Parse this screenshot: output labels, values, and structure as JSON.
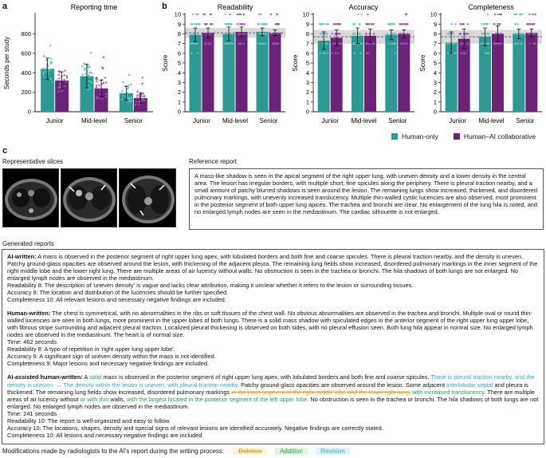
{
  "panels": {
    "a": "a",
    "b": "b",
    "c": "c"
  },
  "colors": {
    "human": "#2a9a92",
    "ai": "#6a2377",
    "band": "#d9d9d9"
  },
  "legend": {
    "human": "Human-only",
    "ai": "Human–AI collaborative"
  },
  "chart_data": [
    {
      "type": "bar",
      "title": "Reporting time",
      "ylabel": "Seconds per study",
      "ylim": [
        0,
        1000
      ],
      "yticks": [
        0,
        200,
        400,
        600,
        800
      ],
      "categories": [
        "Junior",
        "Mid-level",
        "Senior"
      ],
      "series": [
        {
          "name": "Human-only",
          "values": [
            440,
            365,
            190
          ],
          "err": [
            110,
            120,
            70
          ]
        },
        {
          "name": "Human–AI collaborative",
          "values": [
            320,
            240,
            140
          ],
          "err": [
            90,
            85,
            55
          ]
        }
      ]
    },
    {
      "type": "bar",
      "title": "Readability",
      "ylabel": "Score",
      "ylim": [
        0,
        10
      ],
      "yticks": [
        0,
        1,
        2,
        3,
        4,
        5,
        6,
        7,
        8,
        9,
        10
      ],
      "categories": [
        "Junior",
        "Mid-level",
        "Senior"
      ],
      "band": [
        7.6,
        8.6
      ],
      "ref": 8.1,
      "series": [
        {
          "name": "Human-only",
          "values": [
            7.9,
            8.0,
            8.2
          ],
          "err": [
            0.7,
            0.7,
            0.4
          ]
        },
        {
          "name": "Human–AI collaborative",
          "values": [
            8.1,
            8.2,
            8.1
          ],
          "err": [
            0.5,
            0.5,
            0.3
          ]
        }
      ]
    },
    {
      "type": "bar",
      "title": "Accuracy",
      "ylabel": "Score",
      "ylim": [
        0,
        10
      ],
      "yticks": [
        0,
        1,
        2,
        3,
        4,
        5,
        6,
        7,
        8,
        9,
        10
      ],
      "categories": [
        "Junior",
        "Mid-level",
        "Senior"
      ],
      "band": [
        7.0,
        8.4
      ],
      "ref": 7.7,
      "series": [
        {
          "name": "Human-only",
          "values": [
            7.3,
            7.8,
            7.9
          ],
          "err": [
            0.9,
            0.8,
            0.5
          ]
        },
        {
          "name": "Human–AI collaborative",
          "values": [
            7.6,
            7.8,
            8.0
          ],
          "err": [
            0.8,
            0.7,
            0.4
          ]
        }
      ]
    },
    {
      "type": "bar",
      "title": "Completeness",
      "ylabel": "Score",
      "ylim": [
        0,
        10
      ],
      "yticks": [
        0,
        1,
        2,
        3,
        4,
        5,
        6,
        7,
        8,
        9,
        10
      ],
      "categories": [
        "Junior",
        "Mid-level",
        "Senior"
      ],
      "band": [
        7.0,
        8.4
      ],
      "ref": 7.7,
      "series": [
        {
          "name": "Human-only",
          "values": [
            7.1,
            7.7,
            8.0
          ],
          "err": [
            1.1,
            0.9,
            0.5
          ]
        },
        {
          "name": "Human–AI collaborative",
          "values": [
            7.5,
            8.0,
            8.1
          ],
          "err": [
            1.0,
            0.8,
            0.4
          ]
        }
      ]
    }
  ],
  "section_c": {
    "slices_title": "Representative slices",
    "reference_title": "Reference report",
    "reference_text": "A mass-like shadow is seen in the apical segment of the right upper lung, with uneven density and a lower density in the central area. The lesion has irregular borders, with multiple short, fine spicules along the periphery. There is pleural traction nearby, and a small amount of patchy blurred shadows is seen around the lesion. The remaining lungs show increased, thickened, and disordered pulmonary markings, with unevenly increased translucency. Multiple thin-walled cystic lucencies are also observed, most prominent in the posterior segment of both upper lung apices. The trachea and bronchi are clear. No enlargement of the lung hila is noted, and no enlarged lymph nodes are seen in the mediastinum. The cardiac silhouette is not enlarged.",
    "generated_title": "Generated reports",
    "ai": {
      "label": "AI-written:",
      "text": " A mass is observed in the posterior segment of right upper lung apex, with lobulated borders and both fine and coarse spicules. There is pleural traction nearby, and the density is uneven. Patchy ground-glass opacities are observed around the lesion, with thickening of the adjacent pleura. The remaining lung fields show increased, disordered pulmonary markings in the inner segment of the right middle lobe and the lower right lung. There are multiple areas of air lucency without walls. No obstruction is seen in the trachea or bronchi. The hila shadows of both lungs are not enlarged. No enlarged lymph nodes are observed in the mediastinum.",
      "readability": "Readability 8: The description of 'uneven density' is vague and lacks clear attribution, making it unclear whether it refers to the lesion or surrounding tissues.",
      "accuracy": "Accuracy 8: The location and distribution of the lucencies should be further specified.",
      "completeness": "Completeness 10: All relevant lesions and necessary negative findings are included."
    },
    "human": {
      "label": "Human-written:",
      "text": " The chest is symmetrical, with no abnormalities in the ribs or soft tissues of the chest wall. No obvious abnormalities are observed in the trachea and bronchi. Multiple oval or round thin-walled lucencies are seen in both lungs, more prominent in the upper lobes of both lungs. There is a solid mass shadow with spiculated edges in the anterior segment of the right upper lung upper lobe, with fibrous stripe surrounding and adjacent pleural traction. Localized pleural thickening is observed on both sides, with no pleural effusion seen. Both lung hila appear in normal size. No enlarged lymph nodes are observed in the mediastinum. The heart is of normal size.",
      "time": "Time: 462 seconds",
      "readability": "Readability 8: A typo of repetition in 'right upper lung upper lobe'.",
      "accuracy": "Accuracy 6: A significant sign of uneven density within the mass is not identified.",
      "completeness": "Completeness 9: Major lesions and necessary negative findings are included."
    },
    "assisted": {
      "label": "AI-assisted human-written:",
      "s1": " A ",
      "s2": "solid",
      "s3": " mass is observed in the posterior segment of right upper lung apex, with lobulated borders and both fine and coarse spicules. ",
      "s4": "There is pleural traction nearby, and the density is uneven.",
      "s5": " → ",
      "s6": "The density within the lesion is uneven, with pleural traction nearby.",
      "s7": " Patchy ground-glass opacities are observed around the lesion. Some adjacent ",
      "s8": "interlobular septal",
      "s9": " and pleura is thickened. The remaining lung fields show increased, disordered pulmonary markings ",
      "s10": "in the inner segment of the right middle lobe and the lower right lung,",
      "s11": " ",
      "s12": "with increased translucency",
      "s13": ". There are multiple areas of air lucency without ",
      "s14": "or with thin",
      "s15": " walls, ",
      "s16": "with the largest located in the posterior segment of the left upper lobe",
      "s17": ". No obstruction is seen in the trachea or bronchi. The hila shadows of both lungs are not enlarged. No enlarged lymph nodes are observed in the mediastinum.",
      "time": "Time: 241 seconds",
      "readability": "Readability 10: The report is well-organized and easy to follow.",
      "accuracy": "Accuracy 10: The locations, shapes, density and special signs of relevant lesions are identified accurately. Negative findings are correctly stated.",
      "completeness": "Completeness 10: All lesions and necessary negative findings are included."
    },
    "footer": {
      "text": "Modifications made by radiologists to the AI's report during the writing process:",
      "deletion": "Deletion",
      "addition": "Addition",
      "revision": "Revision"
    }
  }
}
